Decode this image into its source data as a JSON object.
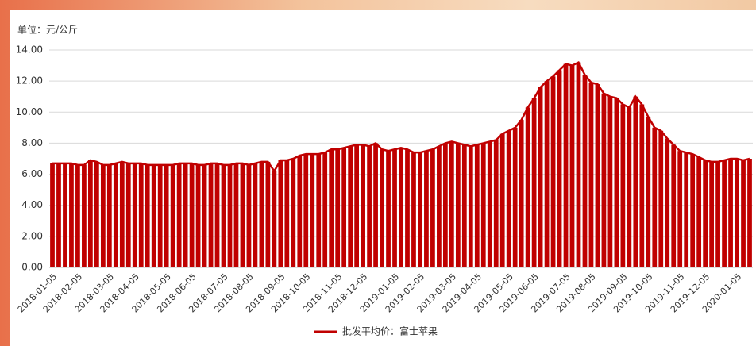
{
  "chart_data": {
    "type": "area",
    "unit_label": "单位：元/公斤",
    "categories": [
      "2018-01-05",
      null,
      null,
      null,
      "2018-02-05",
      null,
      null,
      null,
      null,
      "2018-03-05",
      null,
      null,
      null,
      "2018-04-05",
      null,
      null,
      null,
      null,
      "2018-05-05",
      null,
      null,
      null,
      "2018-06-05",
      null,
      null,
      null,
      null,
      "2018-07-05",
      null,
      null,
      null,
      "2018-08-05",
      null,
      null,
      null,
      null,
      "2018-09-05",
      null,
      null,
      null,
      "2018-10-05",
      null,
      null,
      null,
      null,
      "2018-11-05",
      null,
      null,
      null,
      "2018-12-05",
      null,
      null,
      null,
      null,
      "2019-01-05",
      null,
      null,
      null,
      "2019-02-05",
      null,
      null,
      null,
      null,
      "2019-03-05",
      null,
      null,
      null,
      "2019-04-05",
      null,
      null,
      null,
      null,
      "2019-05-05",
      null,
      null,
      null,
      "2019-06-05",
      null,
      null,
      null,
      null,
      "2019-07-05",
      null,
      null,
      null,
      "2019-08-05",
      null,
      null,
      null,
      null,
      "2019-09-05",
      null,
      null,
      null,
      "2019-10-05",
      null,
      null,
      null,
      null,
      "2019-11-05",
      null,
      null,
      null,
      "2019-12-05",
      null,
      null,
      null,
      null,
      "2020-01-05",
      null,
      null
    ],
    "series": [
      {
        "name": "批发平均价：富士苹果",
        "color": "#c00000",
        "values": [
          6.7,
          6.7,
          6.7,
          6.7,
          6.6,
          6.6,
          6.9,
          6.8,
          6.6,
          6.6,
          6.7,
          6.8,
          6.7,
          6.7,
          6.7,
          6.6,
          6.6,
          6.6,
          6.6,
          6.6,
          6.7,
          6.7,
          6.7,
          6.6,
          6.6,
          6.7,
          6.7,
          6.6,
          6.6,
          6.7,
          6.7,
          6.6,
          6.7,
          6.8,
          6.8,
          6.2,
          6.9,
          6.9,
          7.0,
          7.2,
          7.3,
          7.3,
          7.3,
          7.4,
          7.6,
          7.6,
          7.7,
          7.8,
          7.9,
          7.9,
          7.8,
          8.0,
          7.6,
          7.5,
          7.6,
          7.7,
          7.6,
          7.4,
          7.4,
          7.5,
          7.6,
          7.8,
          8.0,
          8.1,
          8.0,
          7.9,
          7.8,
          7.9,
          8.0,
          8.1,
          8.2,
          8.6,
          8.8,
          9.0,
          9.5,
          10.3,
          10.9,
          11.6,
          12.0,
          12.3,
          12.7,
          13.1,
          13.0,
          13.2,
          12.4,
          11.9,
          11.8,
          11.2,
          11.0,
          10.9,
          10.5,
          10.3,
          11.0,
          10.5,
          9.7,
          9.0,
          8.8,
          8.3,
          7.9,
          7.5,
          7.4,
          7.3,
          7.1,
          6.9,
          6.8,
          6.8,
          6.9,
          7.0,
          7.0,
          6.9,
          7.0
        ]
      }
    ],
    "ylim": [
      0,
      14
    ],
    "yticks": [
      {
        "value": 0,
        "label": "0.00"
      },
      {
        "value": 2,
        "label": "2.00"
      },
      {
        "value": 4,
        "label": "4.00"
      },
      {
        "value": 6,
        "label": "6.00"
      },
      {
        "value": 8,
        "label": "8.00"
      },
      {
        "value": 10,
        "label": "10.00"
      },
      {
        "value": 12,
        "label": "12.00"
      },
      {
        "value": 14,
        "label": "14.00"
      }
    ],
    "grid": true
  }
}
